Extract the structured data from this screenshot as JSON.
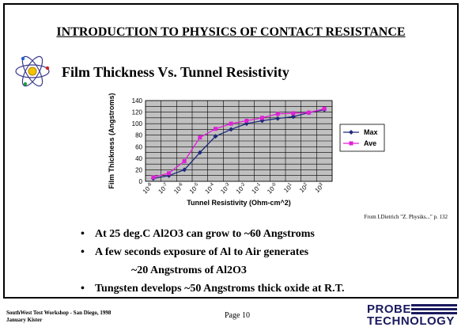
{
  "slide": {
    "title": "INTRODUCTION TO PHYSICS OF CONTACT RESISTANCE",
    "subtitle": "Film Thickness Vs. Tunnel Resistivity",
    "citation": "From I.Dietrich \"Z. Physiks...\" p. 132",
    "bullets": [
      "At 25 deg.C  Al2O3  can grow to ~60 Angstroms",
      "A few seconds exposure of Al to Air generates",
      "~20 Angstroms of Al2O3",
      "Tungsten develops ~50 Angstroms thick oxide at R.T."
    ],
    "bullet_symbol": "•"
  },
  "footer": {
    "line1": "SouthWest Test Workshop - San Diego,  1998",
    "line2": "January Kister",
    "page": "Page 10",
    "logo_line1": "PROBE",
    "logo_line2": "TECHNOLOGY"
  },
  "icons": {
    "atom": "atom-icon"
  },
  "colors": {
    "max": "#1f2a7a",
    "ave": "#e020d8",
    "plot_bg": "#c0c0c0"
  },
  "chart_data": {
    "type": "line",
    "title": "",
    "xlabel": "Tunnel Resistivity  (Ohm-cm^2)",
    "ylabel": "Film Thickness (Angstroms)",
    "categories": [
      "10^-8",
      "10^-7",
      "10^-6",
      "10^-5",
      "10^-4",
      "10^-3",
      "10^-2",
      "10^-1",
      "10^-0",
      "10^1",
      "10^2",
      "10^3"
    ],
    "ylim": [
      0,
      140
    ],
    "yticks": [
      0,
      10,
      20,
      30,
      40,
      50,
      60,
      70,
      80,
      90,
      100,
      110,
      120,
      130,
      140
    ],
    "grid": true,
    "legend_position": "right",
    "series": [
      {
        "name": "Max",
        "color": "#1f2a7a",
        "marker": "diamond",
        "values": [
          5,
          10,
          20,
          50,
          78,
          90,
          100,
          105,
          109,
          112,
          119,
          124
        ]
      },
      {
        "name": "Ave",
        "color": "#e020d8",
        "marker": "square",
        "values": [
          7,
          14,
          35,
          76,
          91,
          100,
          105,
          110,
          117,
          118,
          119,
          126
        ]
      }
    ]
  }
}
